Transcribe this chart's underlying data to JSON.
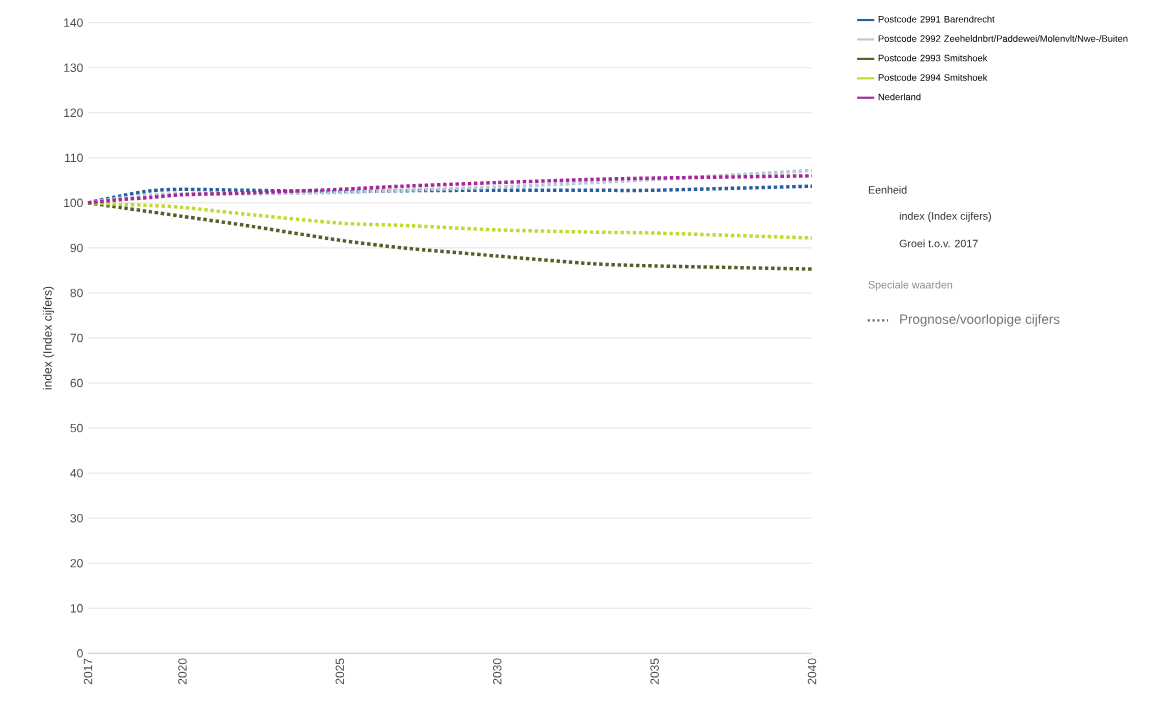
{
  "chart_data": {
    "type": "line",
    "ylabel": "index (Index cijfers)",
    "x": [
      2017,
      2018,
      2019,
      2020,
      2022,
      2025,
      2027,
      2030,
      2033,
      2035,
      2040
    ],
    "series": [
      {
        "name": "Postcode 2991 Barendrecht",
        "color": "#2a5f9e",
        "values": [
          100,
          101.5,
          102.7,
          103,
          102.8,
          102.5,
          102.7,
          102.8,
          102.8,
          102.8,
          103.7
        ]
      },
      {
        "name": "Postcode 2992 Zeeheldnbrt/Paddewei/Molenvlt/Nwe-/Buiten",
        "color": "#b9c8d8",
        "values": [
          100,
          101,
          101.7,
          102,
          102,
          102.3,
          102.8,
          103.5,
          104.5,
          105.2,
          107.2
        ]
      },
      {
        "name": "Postcode 2993 Smitshoek",
        "color": "#4f6228",
        "values": [
          100,
          99,
          98,
          97,
          95,
          91.7,
          90,
          88.2,
          86.5,
          86,
          85.3
        ]
      },
      {
        "name": "Postcode 2994 Smitshoek",
        "color": "#c3d930",
        "values": [
          100,
          99.7,
          99.4,
          99,
          97.5,
          95.5,
          95,
          94,
          93.5,
          93.3,
          92.2
        ]
      },
      {
        "name": "Nederland",
        "color": "#a5279a",
        "values": [
          100,
          100.7,
          101.2,
          101.8,
          102.2,
          103,
          103.7,
          104.5,
          105.2,
          105.5,
          106
        ]
      }
    ],
    "xlim": [
      2017,
      2040
    ],
    "xticks": [
      2017,
      2020,
      2025,
      2030,
      2035,
      2040
    ],
    "ylim": [
      0,
      140
    ],
    "yticks": [
      0,
      10,
      20,
      30,
      40,
      50,
      60,
      70,
      80,
      90,
      100,
      110,
      120,
      130,
      140
    ],
    "grid": "y",
    "legend": "right",
    "line_style": "dotted",
    "marker": "none",
    "annotations": [
      "Eenheid",
      "index (Index cijfers)",
      "Groei t.o.v. 2017",
      "Speciale waarden",
      "Prognose/voorlopige cijfers"
    ]
  }
}
